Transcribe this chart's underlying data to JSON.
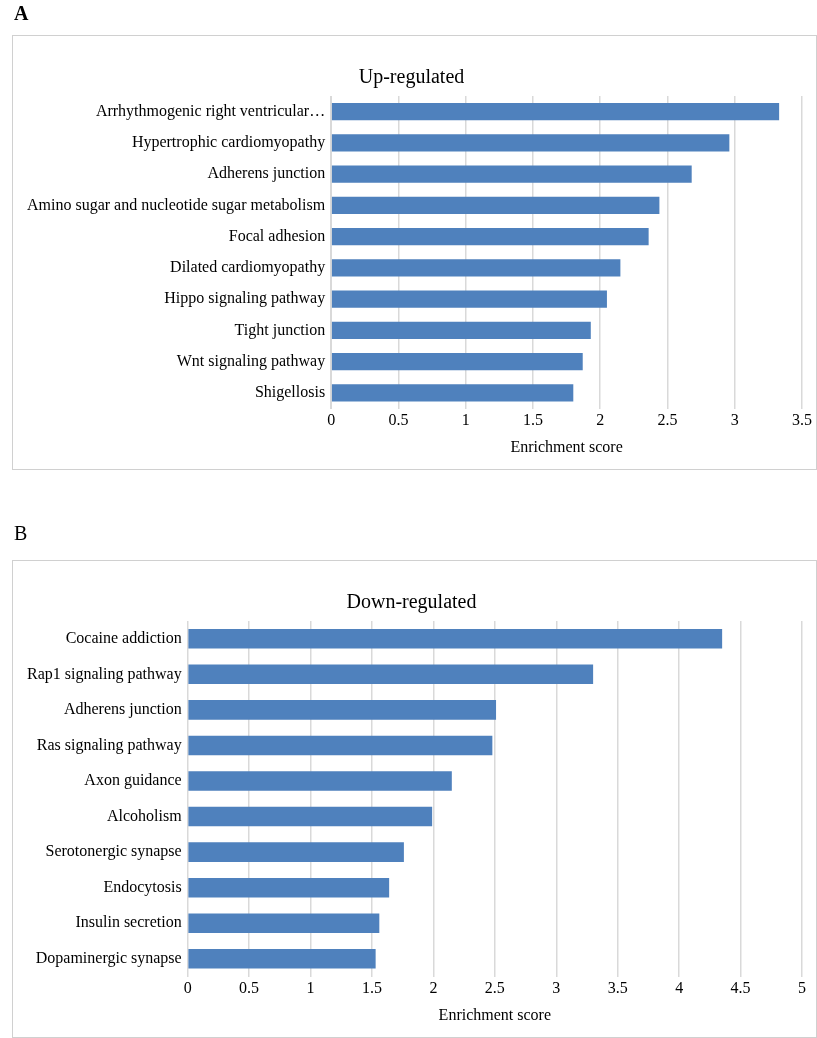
{
  "chart_data": [
    {
      "type": "bar",
      "orientation": "horizontal",
      "title": "Up-regulated",
      "xlabel": "Enrichment score",
      "annotations": [
        "A"
      ],
      "categories": [
        "Arrhythmogenic right ventricular…",
        "Hypertrophic cardiomyopathy",
        "Adherens junction",
        "Amino sugar and nucleotide sugar metabolism",
        "Focal adhesion",
        "Dilated cardiomyopathy",
        "Hippo signaling pathway",
        "Tight junction",
        "Wnt signaling pathway",
        "Shigellosis"
      ],
      "values": [
        3.33,
        2.96,
        2.68,
        2.44,
        2.36,
        2.15,
        2.05,
        1.93,
        1.87,
        1.8
      ],
      "color": "#4f81bd",
      "xlim": [
        0,
        3.5
      ],
      "xticks": [
        0,
        0.5,
        1,
        1.5,
        2,
        2.5,
        3,
        3.5
      ],
      "grid": "x",
      "legend": false
    },
    {
      "type": "bar",
      "orientation": "horizontal",
      "title": "Down-regulated",
      "xlabel": "Enrichment score",
      "annotations": [
        "B"
      ],
      "categories": [
        "Cocaine addiction",
        "Rap1 signaling pathway",
        "Adherens junction",
        "Ras signaling pathway",
        "Axon guidance",
        "Alcoholism",
        "Serotonergic synapse",
        "Endocytosis",
        "Insulin secretion",
        "Dopaminergic synapse"
      ],
      "values": [
        4.35,
        3.3,
        2.51,
        2.48,
        2.15,
        1.99,
        1.76,
        1.64,
        1.56,
        1.53
      ],
      "color": "#4f81bd",
      "xlim": [
        0,
        5
      ],
      "xticks": [
        0,
        0.5,
        1,
        1.5,
        2,
        2.5,
        3,
        3.5,
        4,
        4.5,
        5
      ],
      "grid": "x",
      "legend": false
    }
  ]
}
